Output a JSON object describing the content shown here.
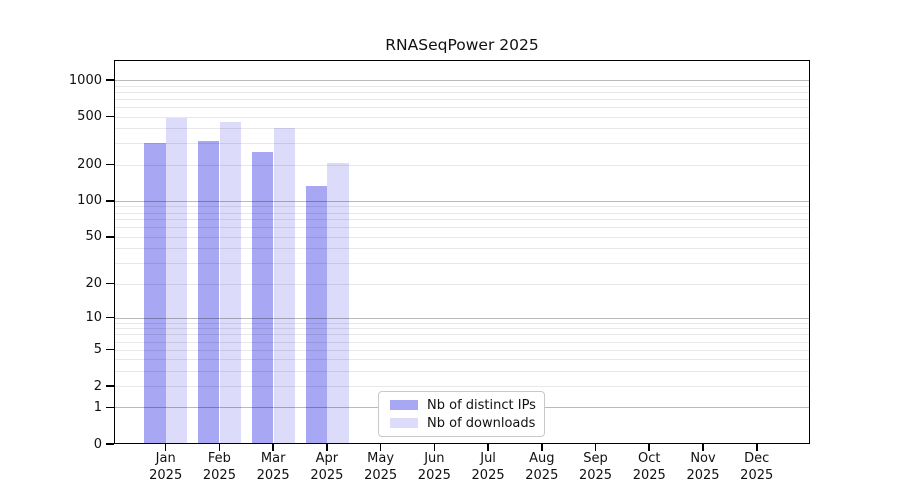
{
  "chart_data": {
    "type": "bar",
    "title": "RNASeqPower 2025",
    "categories": [
      "Jan 2025",
      "Feb 2025",
      "Mar 2025",
      "Apr 2025",
      "May 2025",
      "Jun 2025",
      "Jul 2025",
      "Aug 2025",
      "Sep 2025",
      "Oct 2025",
      "Nov 2025",
      "Dec 2025"
    ],
    "series": [
      {
        "name": "Nb of distinct IPs",
        "color": "#a7a7f4",
        "values": [
          300,
          315,
          255,
          134,
          null,
          null,
          null,
          null,
          null,
          null,
          null,
          null
        ]
      },
      {
        "name": "Nb of downloads",
        "color": "#dcdcfa",
        "values": [
          483,
          450,
          400,
          205,
          null,
          null,
          null,
          null,
          null,
          null,
          null,
          null
        ]
      }
    ],
    "y_ticks": [
      0,
      1,
      2,
      5,
      10,
      20,
      50,
      100,
      200,
      500,
      1000
    ],
    "ylim": [
      0,
      1465
    ],
    "scale": "log1p",
    "grid": true,
    "legend_position": "bottom-center-inside",
    "xlabel": "",
    "ylabel": ""
  }
}
